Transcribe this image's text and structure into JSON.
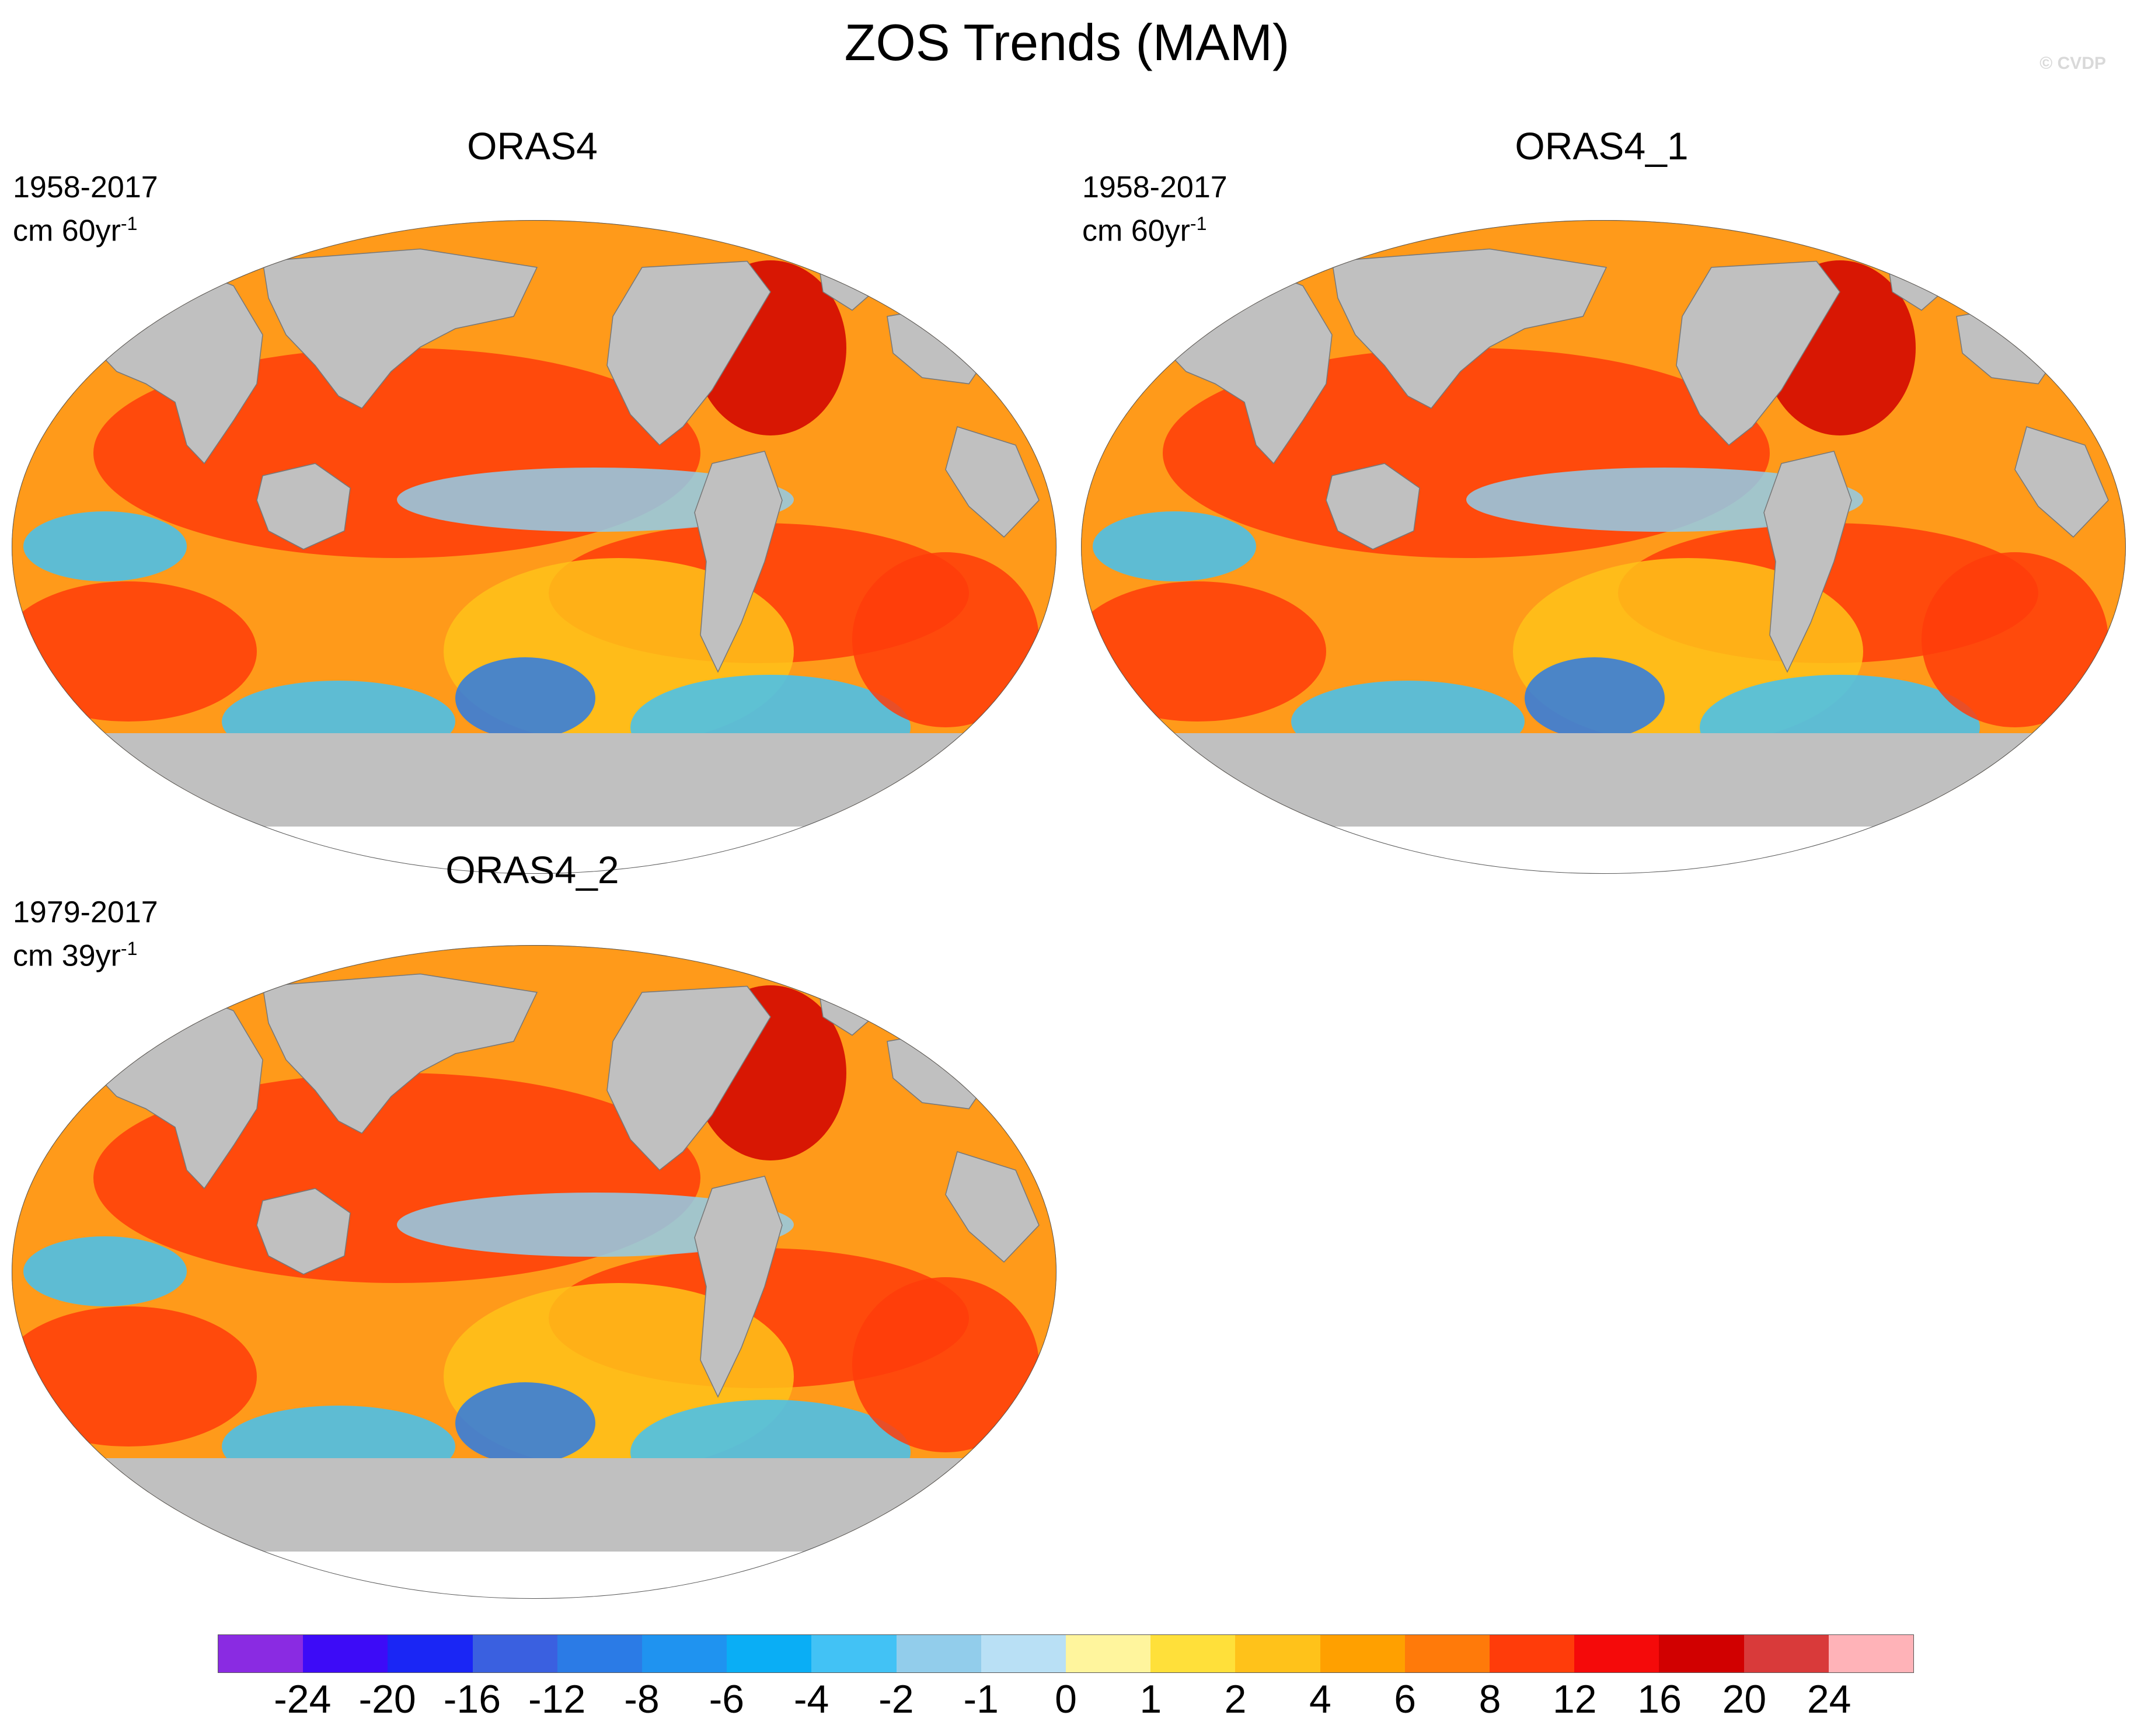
{
  "title": "ZOS Trends (MAM)",
  "credit": "© CVDP",
  "panels": [
    {
      "title": "ORAS4",
      "period": "1958-2017",
      "units_base": "cm 60yr",
      "units_exp": "-1"
    },
    {
      "title": "ORAS4_1",
      "period": "1958-2017",
      "units_base": "cm 60yr",
      "units_exp": "-1"
    },
    {
      "title": "ORAS4_2",
      "period": "1979-2017",
      "units_base": "cm 39yr",
      "units_exp": "-1"
    }
  ],
  "colorbar": {
    "colors": [
      "#8a2be2",
      "#3d0bf7",
      "#1a26f5",
      "#3a60e0",
      "#2b7be6",
      "#1f93f0",
      "#0aaef5",
      "#42c2f5",
      "#92cdeb",
      "#b9e0f5",
      "#fff59d",
      "#ffe03a",
      "#ffc21a",
      "#ffa000",
      "#ff7a0a",
      "#ff3c0a",
      "#f50a0a",
      "#d10000",
      "#d93a3a",
      "#ffb3b8"
    ],
    "labels": [
      "-24",
      "-20",
      "-16",
      "-12",
      "-8",
      "-6",
      "-4",
      "-2",
      "-1",
      "0",
      "1",
      "2",
      "4",
      "6",
      "8",
      "12",
      "16",
      "20",
      "24"
    ]
  },
  "map_colors": {
    "land": "#c0c0c0",
    "outline": "#555555",
    "ocean_base": "#ff9a1a"
  }
}
